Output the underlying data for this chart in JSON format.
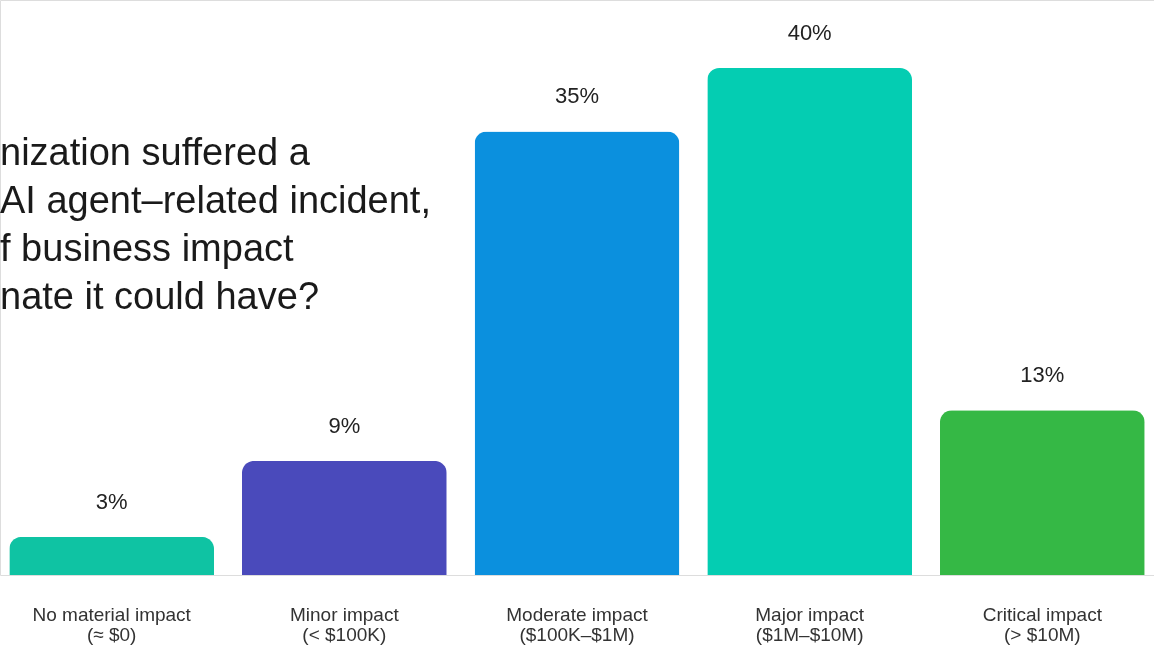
{
  "chart_data": {
    "type": "bar",
    "title": "nization suffered a\nAI agent–related incident,\nf business impact\nnate it could have?",
    "categories": [
      "No material impact\n(≈ $0)",
      "Minor impact\n(< $100K)",
      "Moderate impact\n($100K–$1M)",
      "Major impact\n($1M–$10M)",
      "Critical impact\n(> $10M)"
    ],
    "values": [
      3,
      9,
      35,
      40,
      13
    ],
    "colors": [
      "#0fc3a3",
      "#4a4abb",
      "#0b90de",
      "#04cdb2",
      "#35b845"
    ],
    "value_labels": [
      "3%",
      "9%",
      "35%",
      "40%",
      "13%"
    ]
  }
}
